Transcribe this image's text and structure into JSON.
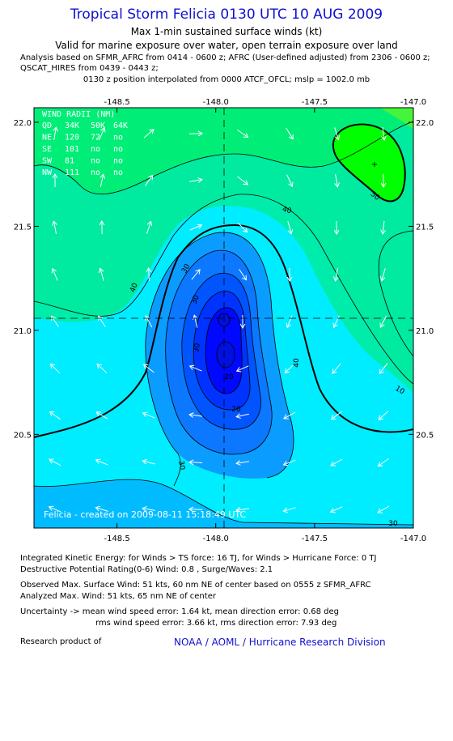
{
  "header": {
    "title": "Tropical Storm Felicia 0130 UTC 10 AUG 2009",
    "subtitle1": "Max 1-min sustained surface winds (kt)",
    "subtitle2": "Valid for marine exposure over water, open terrain exposure over land",
    "analysis_line": "Analysis based on  SFMR_AFRC from 0414 - 0600 z;  AFRC (User-defined adjusted) from 2306 - 0600 z;",
    "qscat_line": "QSCAT_HIRES from 0439 - 0443 z;",
    "position_line": "0130 z position interpolated from 0000 ATCF_OFCL; mslp = 1002.0 mb"
  },
  "map": {
    "lon_ticks": [
      "-148.5",
      "-148.0",
      "-147.5",
      "-147.0"
    ],
    "lat_ticks": [
      "22.0",
      "21.5",
      "21.0",
      "20.5"
    ],
    "lon_range": [
      -148.92,
      -147.0
    ],
    "lat_range": [
      20.05,
      22.07
    ],
    "center": {
      "lon": -148.0,
      "lat": 21.06
    },
    "contour_labels": [
      "50",
      "40",
      "40",
      "30",
      "30",
      "30",
      "20",
      "20",
      "10",
      "40",
      "30",
      "30"
    ],
    "credit": "Felicia - created on 2009-08-11 15:18:49 UTC",
    "wind_radii": {
      "title": "WIND RADII (NM)",
      "header": [
        "QD",
        "34K",
        "50K",
        "64K"
      ],
      "rows": [
        [
          "NE",
          "120",
          "72",
          "no"
        ],
        [
          "SE",
          "101",
          "no",
          "no"
        ],
        [
          "SW",
          "81",
          "no",
          "no"
        ],
        [
          "NW",
          "111",
          "no",
          "no"
        ]
      ]
    },
    "colors": {
      "c10": "#0008ff",
      "c15": "#0033ff",
      "c20": "#0055ff",
      "c25": "#0b78ff",
      "c30": "#00a0ff",
      "c35": "#00bcff",
      "c40": "#00ecff",
      "c45": "#00eaa0",
      "c50": "#00ee78",
      "c55": "#44f53a",
      "c60": "#00ff00"
    }
  },
  "info": {
    "ike": "Integrated Kinetic Energy:  for Winds > TS force: 16 TJ,  for Winds > Hurricane Force: 0 TJ",
    "dpr": "Destructive Potential Rating(0-6)   Wind: 0.8 , Surge/Waves: 2.1",
    "obs": "Observed Max. Surface Wind: 51 kts, 60 nm NE of center based on 0555 z SFMR_AFRC",
    "ana": "Analyzed Max. Wind: 51 kts, 65 nm NE of center",
    "unc1": "Uncertainty -> mean wind speed error: 1.64 kt,   mean direction error: 0.68 deg",
    "unc2": "rms wind speed error: 3.66 kt,   rms direction error: 7.93 deg",
    "research": "Research product of",
    "noaa": "NOAA / AOML / Hurricane Research Division"
  }
}
